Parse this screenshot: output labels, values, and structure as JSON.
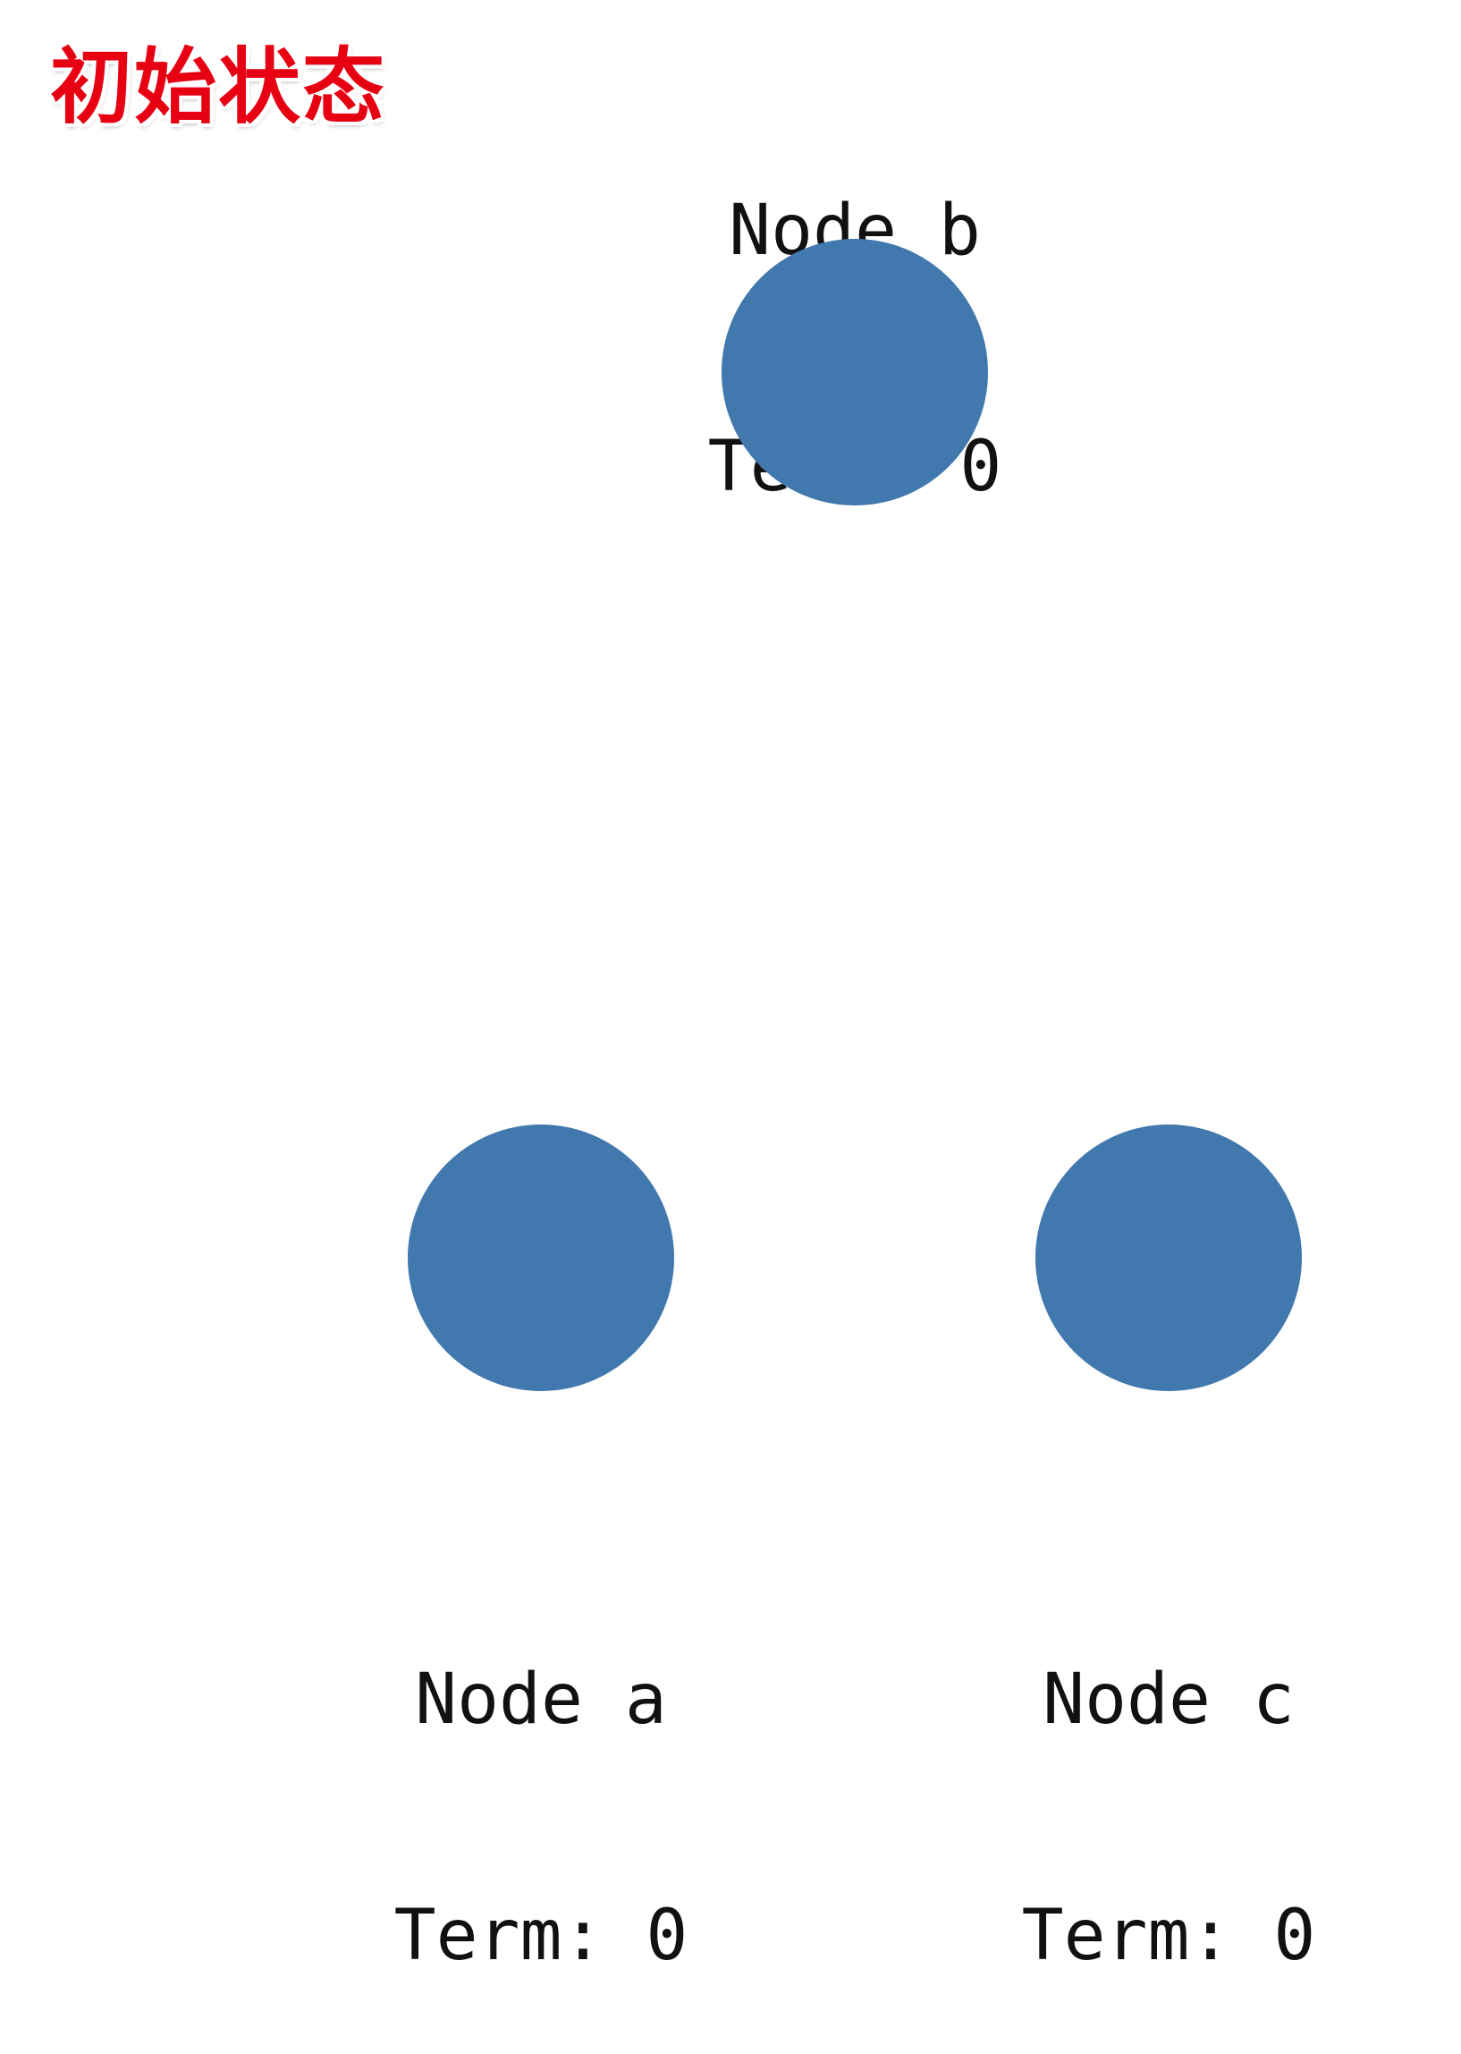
{
  "title": "初始状态",
  "colors": {
    "node_fill": "#4178ad",
    "title_color": "#e60012",
    "text_color": "#111111"
  },
  "nodes": [
    {
      "id": "b",
      "name": "Node b",
      "term": "Term: 0"
    },
    {
      "id": "a",
      "name": "Node a",
      "term": "Term: 0"
    },
    {
      "id": "c",
      "name": "Node c",
      "term": "Term: 0"
    }
  ]
}
